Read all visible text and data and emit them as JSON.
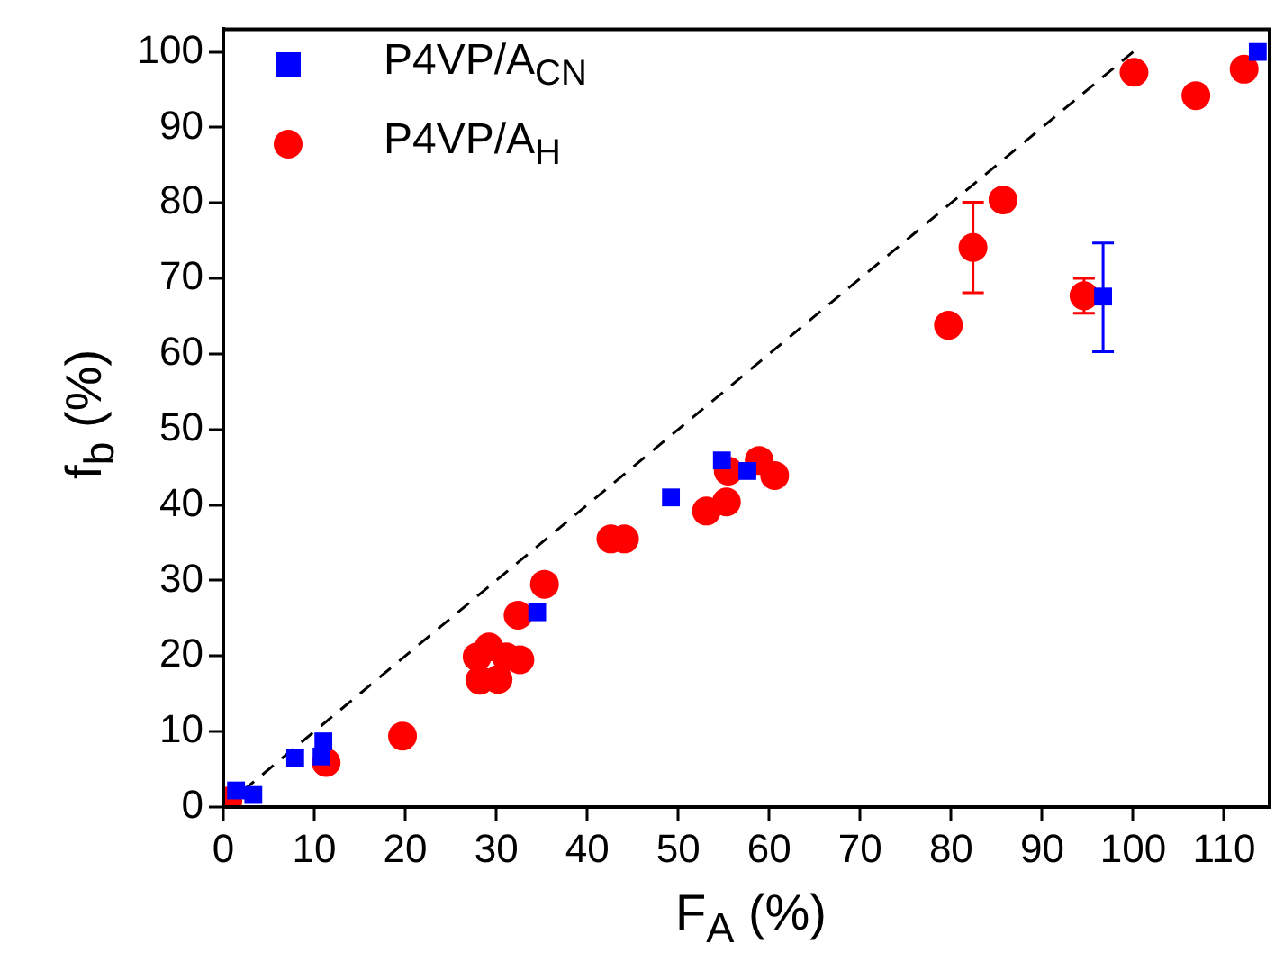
{
  "chart_data": {
    "type": "scatter",
    "xlabel": "F$_{A}$ (%)",
    "ylabel": "f$_{b}$ (%)",
    "xlim": [
      0,
      115
    ],
    "ylim": [
      0,
      103
    ],
    "xticks": [
      0,
      10,
      20,
      30,
      40,
      50,
      60,
      70,
      80,
      90,
      100,
      110
    ],
    "yticks": [
      0,
      10,
      20,
      30,
      40,
      50,
      60,
      70,
      80,
      90,
      100
    ],
    "grid": false,
    "legend": "top left",
    "series": [
      {
        "type": "line",
        "color": "#000000",
        "line_style": "dashed",
        "marker": "none",
        "x": [
          0,
          100
        ],
        "values": [
          0,
          100
        ]
      },
      {
        "name": "P4VP/A$_{CN}$",
        "color": "#0000ff",
        "marker": "square",
        "x": [
          1.4,
          3.3,
          7.9,
          10.8,
          11.0,
          34.5,
          49.2,
          54.8,
          57.6,
          96.7,
          113.7
        ],
        "values": [
          2.2,
          1.6,
          6.5,
          6.7,
          8.7,
          25.8,
          41.0,
          45.9,
          44.5,
          67.6,
          100.0
        ],
        "errors": [
          null,
          null,
          null,
          null,
          null,
          null,
          null,
          null,
          null,
          [
            60.3,
            74.7
          ],
          null
        ]
      },
      {
        "name": "P4VP/A$_{H}$",
        "color": "#ff0000",
        "marker": "circle",
        "x": [
          0.5,
          11.3,
          19.7,
          28.2,
          30.2,
          27.9,
          29.2,
          31.1,
          32.6,
          32.4,
          35.3,
          42.6,
          44.1,
          53.1,
          55.3,
          55.5,
          58.9,
          60.6,
          79.7,
          82.4,
          85.7,
          94.6,
          100.1,
          106.9,
          112.2
        ],
        "values": [
          0.8,
          5.9,
          9.4,
          16.8,
          16.9,
          19.9,
          21.2,
          19.9,
          19.5,
          25.4,
          29.5,
          35.5,
          35.5,
          39.2,
          40.4,
          44.5,
          45.9,
          43.9,
          63.8,
          74.1,
          80.4,
          67.7,
          97.3,
          94.2,
          97.7
        ],
        "errors": [
          null,
          null,
          null,
          null,
          null,
          null,
          null,
          null,
          null,
          null,
          null,
          null,
          null,
          null,
          null,
          null,
          null,
          null,
          null,
          [
            68.1,
            80.1
          ],
          null,
          [
            65.4,
            70.0
          ],
          null,
          null,
          null
        ]
      }
    ]
  }
}
